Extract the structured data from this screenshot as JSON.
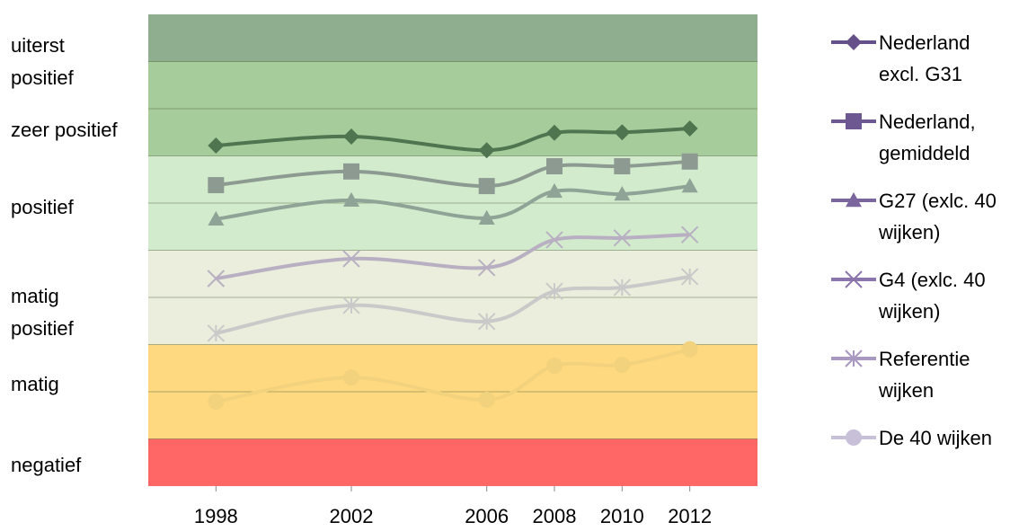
{
  "chart_data": {
    "type": "line",
    "xlim": [
      1996,
      2014
    ],
    "xticks": [
      1998,
      2002,
      2006,
      2008,
      2010,
      2012
    ],
    "ylim": [
      0,
      10
    ],
    "yticks": [
      {
        "value": 9.0,
        "label": "uiterst positief"
      },
      {
        "value": 7.55,
        "label": "zeer positief"
      },
      {
        "value": 5.9,
        "label": "positief"
      },
      {
        "value": 3.67,
        "label": "matig positief"
      },
      {
        "value": 2.15,
        "label": "matig"
      },
      {
        "value": 0.44,
        "label": "negatief"
      }
    ],
    "bands": [
      {
        "from": 0,
        "to": 1,
        "color": "#ff6666"
      },
      {
        "from": 1,
        "to": 3,
        "color": "#ffd97f"
      },
      {
        "from": 3,
        "to": 5,
        "color": "#ebeedc"
      },
      {
        "from": 5,
        "to": 7,
        "color": "#d3ebcd"
      },
      {
        "from": 7,
        "to": 9,
        "color": "#a6cc9c"
      },
      {
        "from": 9,
        "to": 10,
        "color": "#8fad8f"
      }
    ],
    "grid_lines": [
      1,
      2,
      3,
      4,
      5,
      6,
      7,
      8,
      9
    ],
    "legend": "right",
    "x": [
      1998,
      2002,
      2006,
      2008,
      2010,
      2012
    ],
    "series": [
      {
        "name": "Nederland excl. G31",
        "color": "#4f7550",
        "legend_color": "#65508a",
        "marker": "diamond",
        "values": [
          7.22,
          7.41,
          7.12,
          7.49,
          7.5,
          7.58
        ]
      },
      {
        "name": "Nederland, gemiddeld",
        "color": "#8c9a92",
        "legend_color": "#6d5891",
        "marker": "square",
        "values": [
          6.38,
          6.67,
          6.36,
          6.78,
          6.78,
          6.88
        ]
      },
      {
        "name": "G27 (exlc. 40 wijken)",
        "color": "#8fa396",
        "legend_color": "#7a659c",
        "marker": "triangle",
        "values": [
          5.66,
          6.06,
          5.68,
          6.25,
          6.19,
          6.36
        ]
      },
      {
        "name": "G4 (exlc. 40 wijken)",
        "color": "#b8b0c2",
        "legend_color": "#8a76ad",
        "marker": "x",
        "values": [
          4.4,
          4.82,
          4.63,
          5.22,
          5.26,
          5.33
        ]
      },
      {
        "name": "Referentie wijken",
        "color": "#c9c9c9",
        "legend_color": "#a898c2",
        "marker": "star",
        "values": [
          3.24,
          3.83,
          3.49,
          4.13,
          4.21,
          4.44
        ]
      },
      {
        "name": "De 40 wijken",
        "color": "#f3d27e",
        "legend_color": "#c8bfd9",
        "marker": "circle",
        "values": [
          1.79,
          2.3,
          1.83,
          2.55,
          2.57,
          2.9
        ]
      }
    ]
  }
}
